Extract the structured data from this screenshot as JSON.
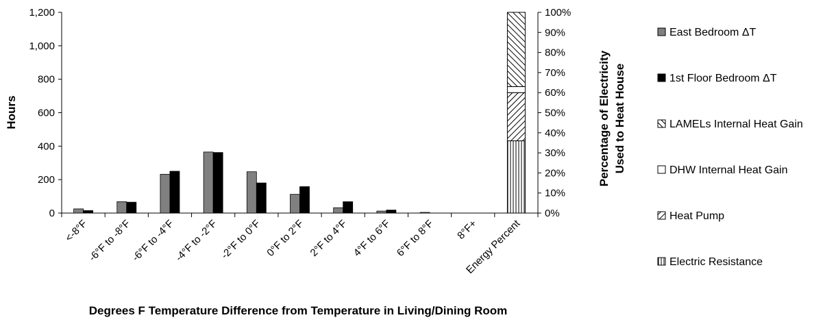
{
  "chart_data": {
    "type": "bar",
    "categories": [
      "<-8°F",
      "-6°F to -8°F",
      "-6°F to -4°F",
      "-4°F to -2°F",
      "-2°F to 0°F",
      "0°F to 2°F",
      "2°F to 4°F",
      "4°F to 6°F",
      "6°F to 8°F",
      "8°F+",
      "Energy Percent"
    ],
    "series": [
      {
        "name": "East Bedroom  ΔT",
        "values": [
          25,
          68,
          232,
          365,
          247,
          112,
          32,
          12,
          4,
          0,
          null
        ],
        "color": "#808080"
      },
      {
        "name": "1st Floor Bedroom  ΔT",
        "values": [
          15,
          65,
          250,
          362,
          180,
          158,
          68,
          18,
          0,
          0,
          null
        ],
        "color": "#000000"
      }
    ],
    "stacked_series": {
      "category": "Energy Percent",
      "axis": "secondary",
      "components": [
        {
          "name": "Electric Resistance",
          "percent": 36,
          "pattern": "vertical-lines"
        },
        {
          "name": "Heat Pump",
          "percent": 24,
          "pattern": "forward-diagonal"
        },
        {
          "name": "DHW  Internal Heat Gain",
          "percent": 3,
          "pattern": "solid-white"
        },
        {
          "name": "LAMELs Internal Heat Gain",
          "percent": 37,
          "pattern": "backward-diagonal"
        }
      ]
    },
    "xlabel": "Degrees  F Temperature Difference from Temperature in Living/Dining Room",
    "ylabel": "Hours",
    "y2label_line1": "Percentage of Electricity",
    "y2label_line2": "Used to Heat House",
    "ylim": [
      0,
      1200
    ],
    "yticks": [
      "0",
      "200",
      "400",
      "600",
      "800",
      "1,000",
      "1,200"
    ],
    "y2lim": [
      0,
      100
    ],
    "y2ticks": [
      "0%",
      "10%",
      "20%",
      "30%",
      "40%",
      "50%",
      "60%",
      "70%",
      "80%",
      "90%",
      "100%"
    ],
    "legend_position": "right",
    "grid": false
  }
}
